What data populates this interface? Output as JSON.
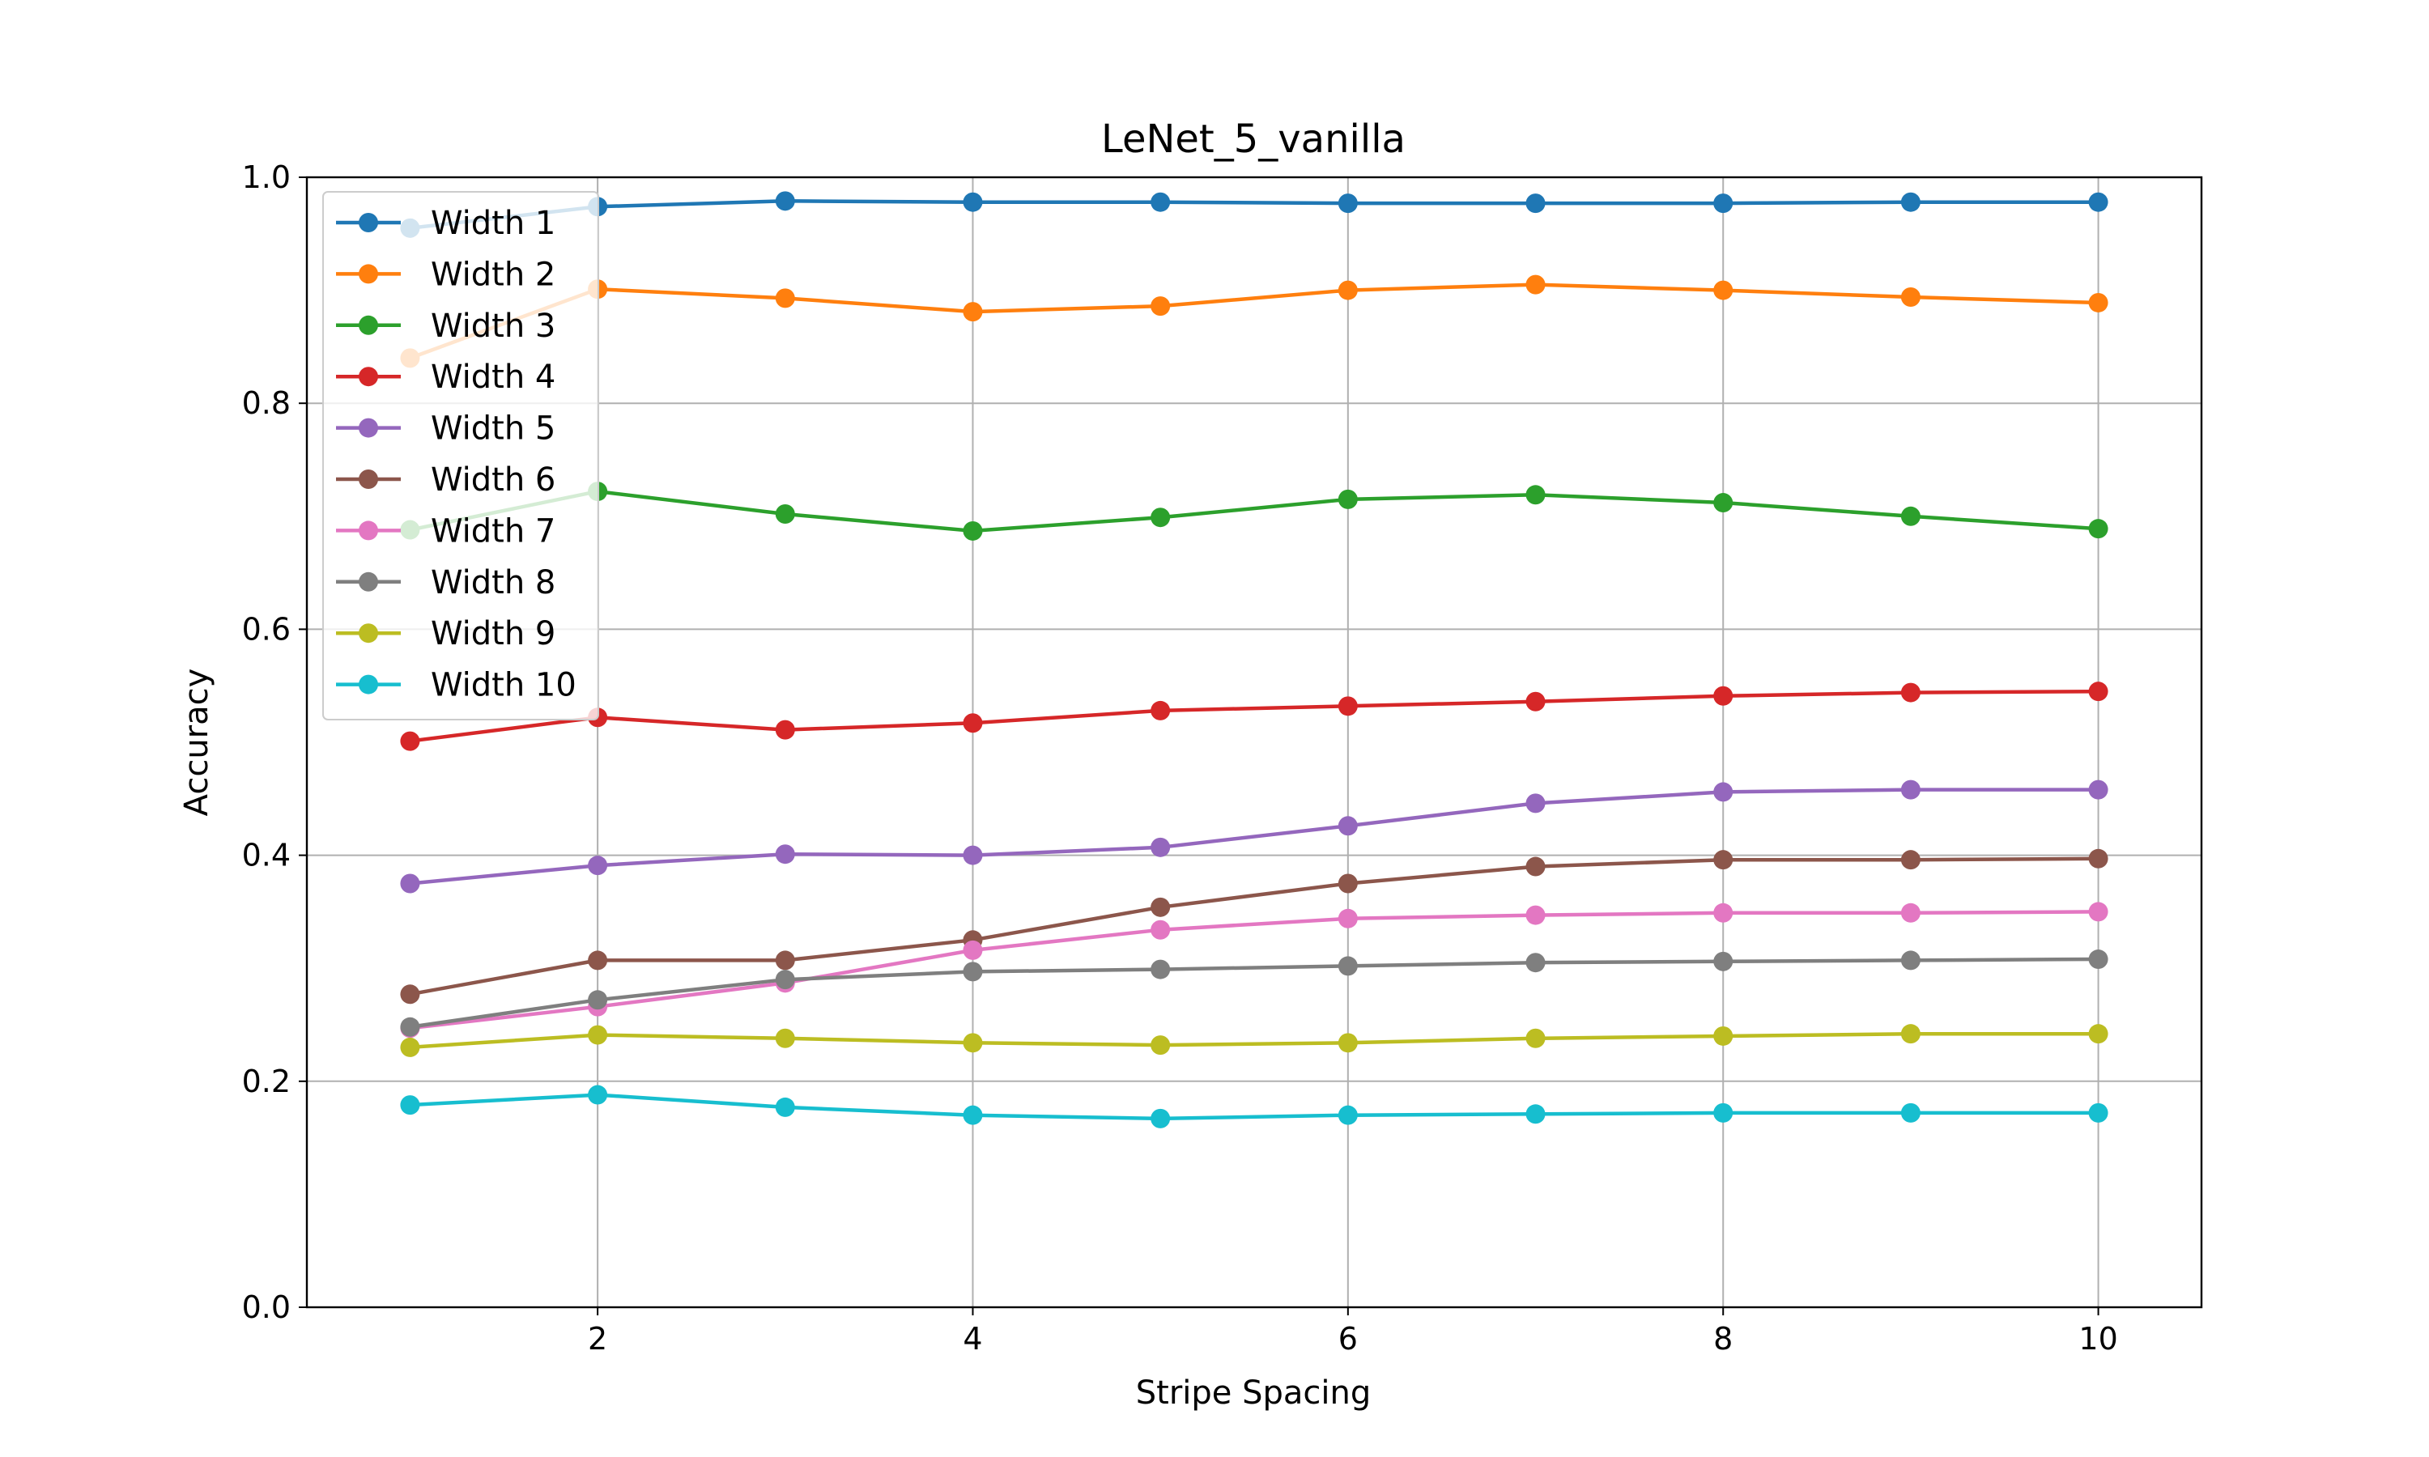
{
  "chart_data": {
    "type": "line",
    "title": "LeNet_5_vanilla",
    "xlabel": "Stripe Spacing",
    "ylabel": "Accuracy",
    "xlim": [
      0.45,
      10.55
    ],
    "ylim": [
      0.0,
      1.0
    ],
    "xticks": [
      2,
      4,
      6,
      8,
      10
    ],
    "yticks": [
      0.0,
      0.2,
      0.4,
      0.6,
      0.8,
      1.0
    ],
    "xtick_labels": [
      "2",
      "4",
      "6",
      "8",
      "10"
    ],
    "ytick_labels": [
      "0.0",
      "0.2",
      "0.4",
      "0.6",
      "0.8",
      "1.0"
    ],
    "grid": true,
    "legend_position": "upper-left",
    "x": [
      1,
      2,
      3,
      4,
      5,
      6,
      7,
      8,
      9,
      10
    ],
    "series": [
      {
        "name": "Width 1",
        "color": "#1f77b4",
        "values": [
          0.955,
          0.974,
          0.979,
          0.978,
          0.978,
          0.977,
          0.977,
          0.977,
          0.978,
          0.978
        ]
      },
      {
        "name": "Width 2",
        "color": "#ff7f0e",
        "values": [
          0.84,
          0.901,
          0.893,
          0.881,
          0.886,
          0.9,
          0.905,
          0.9,
          0.894,
          0.889
        ]
      },
      {
        "name": "Width 3",
        "color": "#2ca02c",
        "values": [
          0.688,
          0.722,
          0.702,
          0.687,
          0.699,
          0.715,
          0.719,
          0.712,
          0.7,
          0.689
        ]
      },
      {
        "name": "Width 4",
        "color": "#d62728",
        "values": [
          0.501,
          0.522,
          0.511,
          0.517,
          0.528,
          0.532,
          0.536,
          0.541,
          0.544,
          0.545
        ]
      },
      {
        "name": "Width 5",
        "color": "#9467bd",
        "values": [
          0.375,
          0.391,
          0.401,
          0.4,
          0.407,
          0.426,
          0.446,
          0.456,
          0.458,
          0.458
        ]
      },
      {
        "name": "Width 6",
        "color": "#8c564b",
        "values": [
          0.277,
          0.307,
          0.307,
          0.325,
          0.354,
          0.375,
          0.39,
          0.396,
          0.396,
          0.397
        ]
      },
      {
        "name": "Width 7",
        "color": "#e377c2",
        "values": [
          0.247,
          0.266,
          0.287,
          0.316,
          0.334,
          0.344,
          0.347,
          0.349,
          0.349,
          0.35
        ]
      },
      {
        "name": "Width 8",
        "color": "#7f7f7f",
        "values": [
          0.248,
          0.272,
          0.29,
          0.297,
          0.299,
          0.302,
          0.305,
          0.306,
          0.307,
          0.308
        ]
      },
      {
        "name": "Width 9",
        "color": "#bcbd22",
        "values": [
          0.23,
          0.241,
          0.238,
          0.234,
          0.232,
          0.234,
          0.238,
          0.24,
          0.242,
          0.242
        ]
      },
      {
        "name": "Width 10",
        "color": "#17becf",
        "values": [
          0.179,
          0.188,
          0.177,
          0.17,
          0.167,
          0.17,
          0.171,
          0.172,
          0.172,
          0.172
        ]
      }
    ]
  }
}
